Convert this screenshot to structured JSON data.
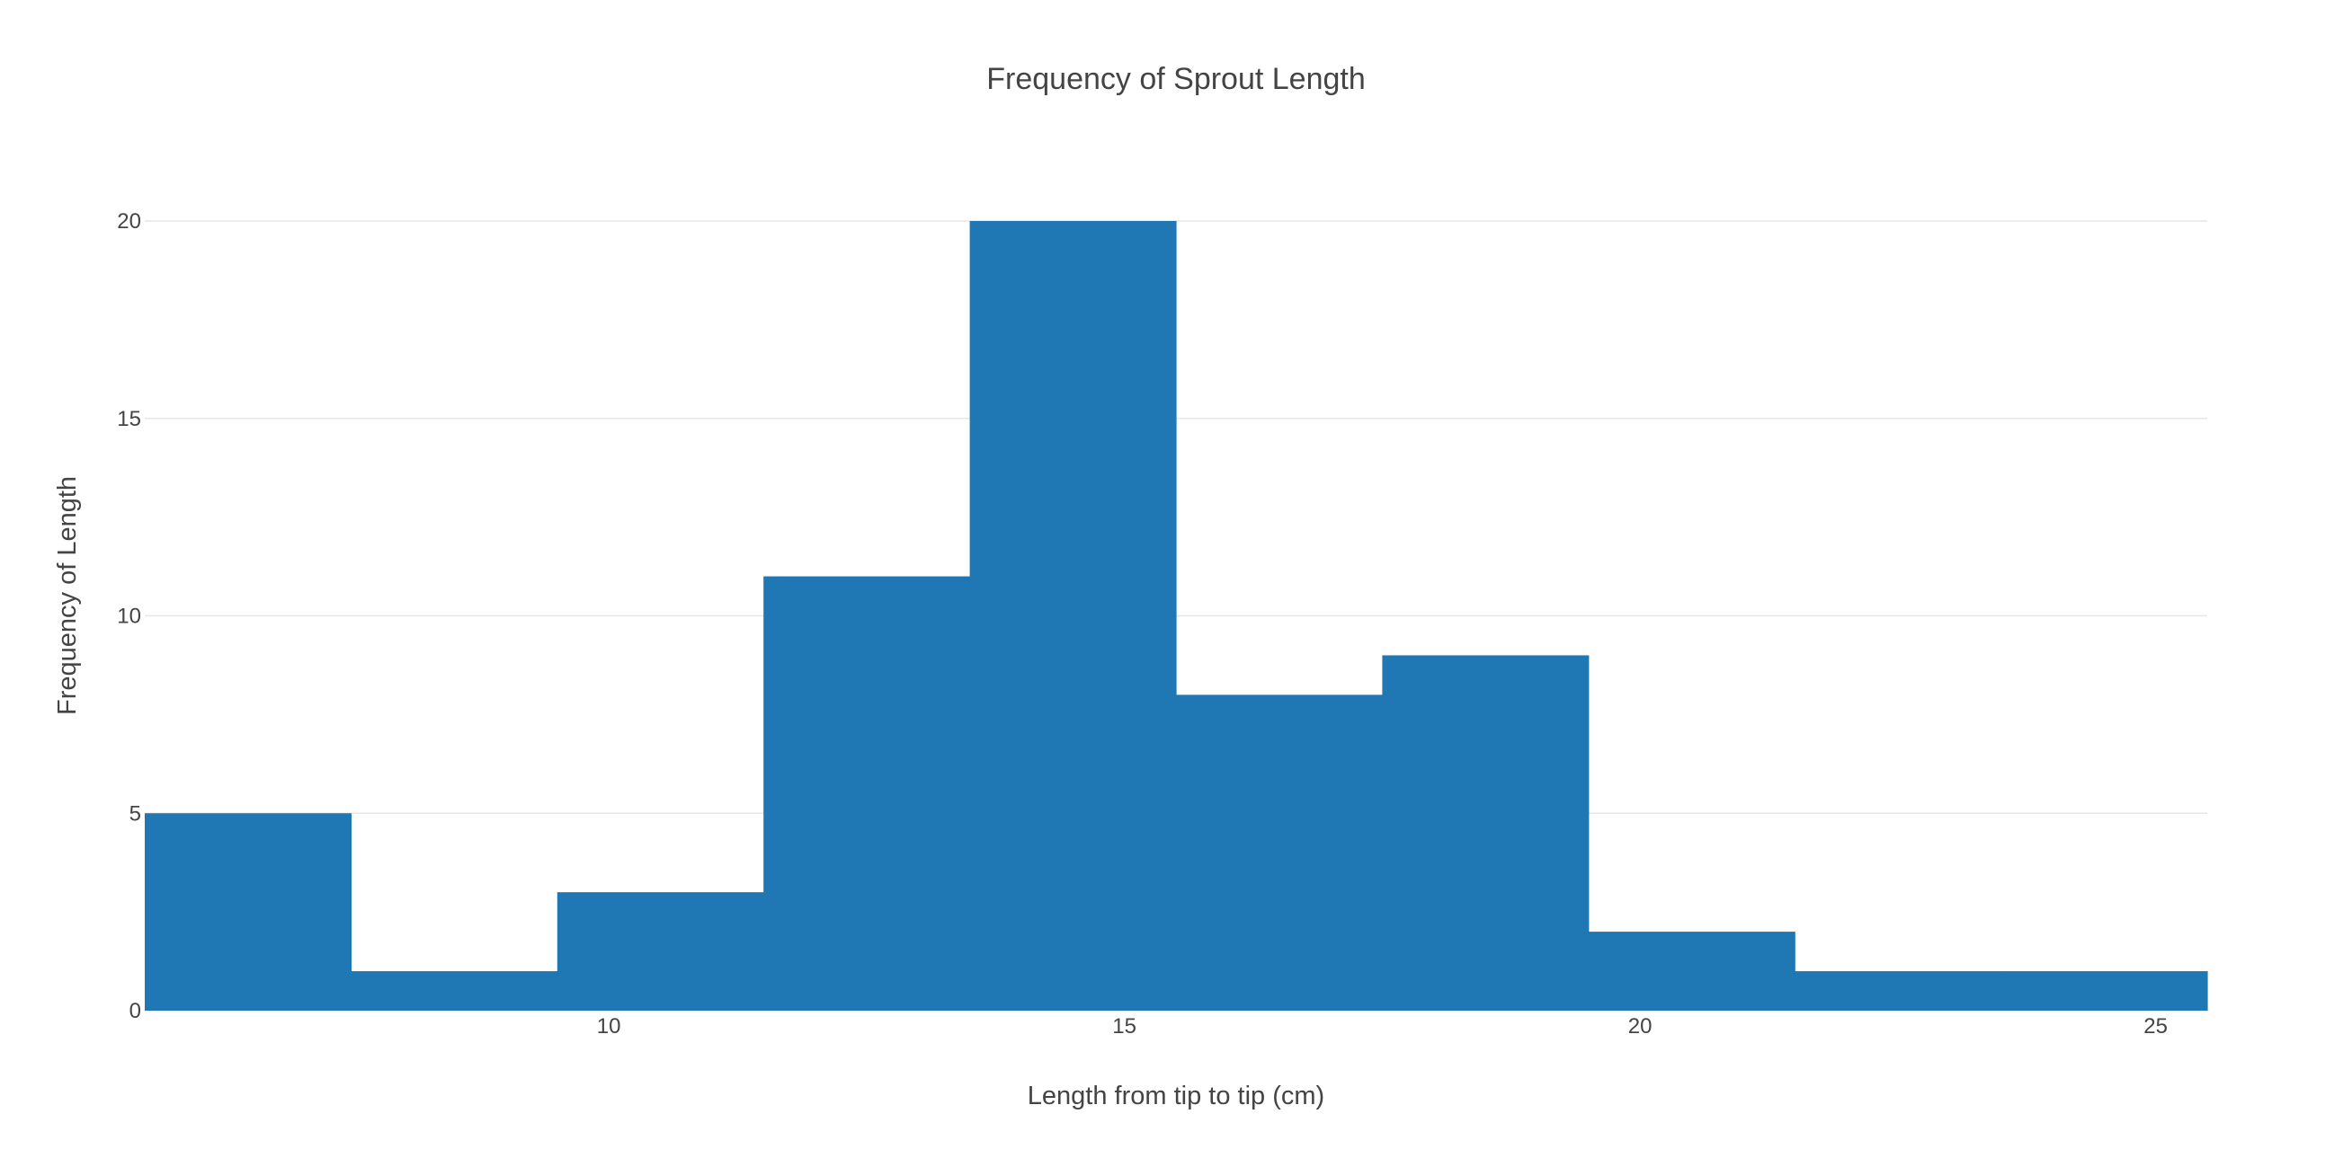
{
  "chart_data": {
    "type": "bar",
    "subtype": "histogram",
    "title": "Frequency of Sprout Length",
    "xlabel": "Length from tip to tip (cm)",
    "ylabel": "Frequency of Length",
    "bins": [
      {
        "start": 5.5,
        "end": 7.5,
        "count": 5
      },
      {
        "start": 7.5,
        "end": 9.5,
        "count": 1
      },
      {
        "start": 9.5,
        "end": 11.5,
        "count": 3
      },
      {
        "start": 11.5,
        "end": 13.5,
        "count": 11
      },
      {
        "start": 13.5,
        "end": 15.5,
        "count": 20
      },
      {
        "start": 15.5,
        "end": 17.5,
        "count": 8
      },
      {
        "start": 17.5,
        "end": 19.5,
        "count": 9
      },
      {
        "start": 19.5,
        "end": 21.5,
        "count": 2
      },
      {
        "start": 21.5,
        "end": 23.5,
        "count": 1
      },
      {
        "start": 23.5,
        "end": 25.5,
        "count": 1
      }
    ],
    "xlim": [
      5.5,
      25.5
    ],
    "ylim": [
      0,
      20
    ],
    "xticks": [
      10,
      15,
      20,
      25
    ],
    "yticks": [
      0,
      5,
      10,
      15,
      20
    ],
    "grid": true,
    "legend": "none",
    "bar_color": "#1f77b4",
    "grid_color": "#e6e6e6"
  }
}
